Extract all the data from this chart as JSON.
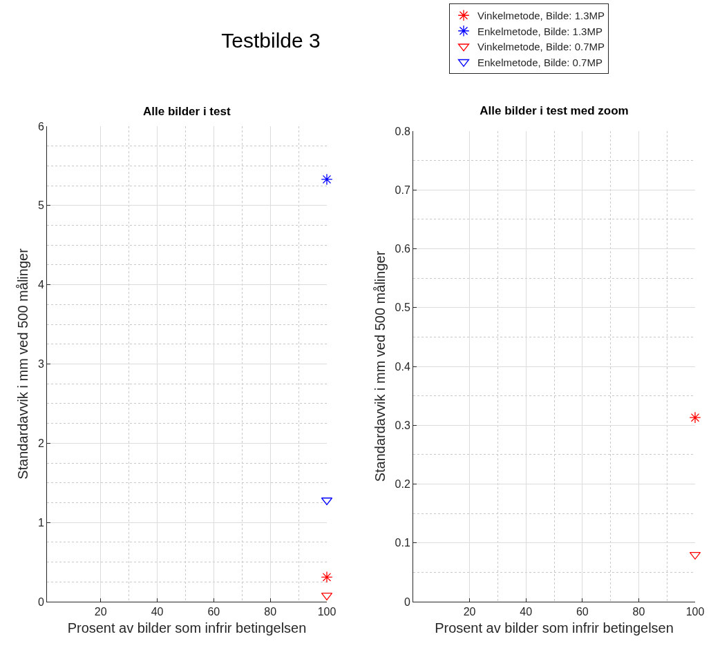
{
  "chart_data": [
    {
      "type": "scatter",
      "title": "Testbilde 3",
      "subtitle": "Alle bilder i test",
      "xlabel": "Prosent av bilder som infrir betingelsen",
      "ylabel": "Standardavvik i mm ved 500 målinger",
      "x": [
        100
      ],
      "xlim": [
        1,
        100
      ],
      "xticks": [
        20,
        40,
        60,
        80,
        100
      ],
      "ylim": [
        0,
        6
      ],
      "yticks": [
        0,
        1,
        2,
        3,
        4,
        5,
        6
      ],
      "grid": true,
      "legend": "top right",
      "series": [
        {
          "name": "Vinkelmetode, Bilde: 1.3MP",
          "color": "#ff0000",
          "marker": "cross",
          "values": [
            0.31
          ]
        },
        {
          "name": "Enkelmetode, Bilde: 1.3MP",
          "color": "#0000ff",
          "marker": "cross",
          "values": [
            5.33
          ]
        },
        {
          "name": "Vinkelmetode, Bilde: 0.7MP",
          "color": "#ff0000",
          "marker": "triangle",
          "values": [
            0.08
          ]
        },
        {
          "name": "Enkelmetode, Bilde: 0.7MP",
          "color": "#0000ff",
          "marker": "triangle",
          "values": [
            1.28
          ]
        }
      ]
    },
    {
      "type": "scatter",
      "title": "Alle bilder i test med zoom",
      "xlabel": "Prosent av bilder som infrir betingelsen",
      "ylabel": "Standardavvik i mm ved 500 målinger",
      "x": [
        100
      ],
      "xlim": [
        0,
        100
      ],
      "xticks": [
        20,
        40,
        60,
        80,
        100
      ],
      "ylim": [
        0,
        0.8
      ],
      "yticks": [
        0,
        0.1,
        0.2,
        0.3,
        0.4,
        0.5,
        0.6,
        0.7,
        0.8
      ],
      "grid": true,
      "series": [
        {
          "color": "#ff0000",
          "marker": "cross",
          "values": [
            0.313
          ]
        },
        {
          "color": "#ff0000",
          "marker": "triangle",
          "values": [
            0.08
          ]
        }
      ]
    }
  ]
}
